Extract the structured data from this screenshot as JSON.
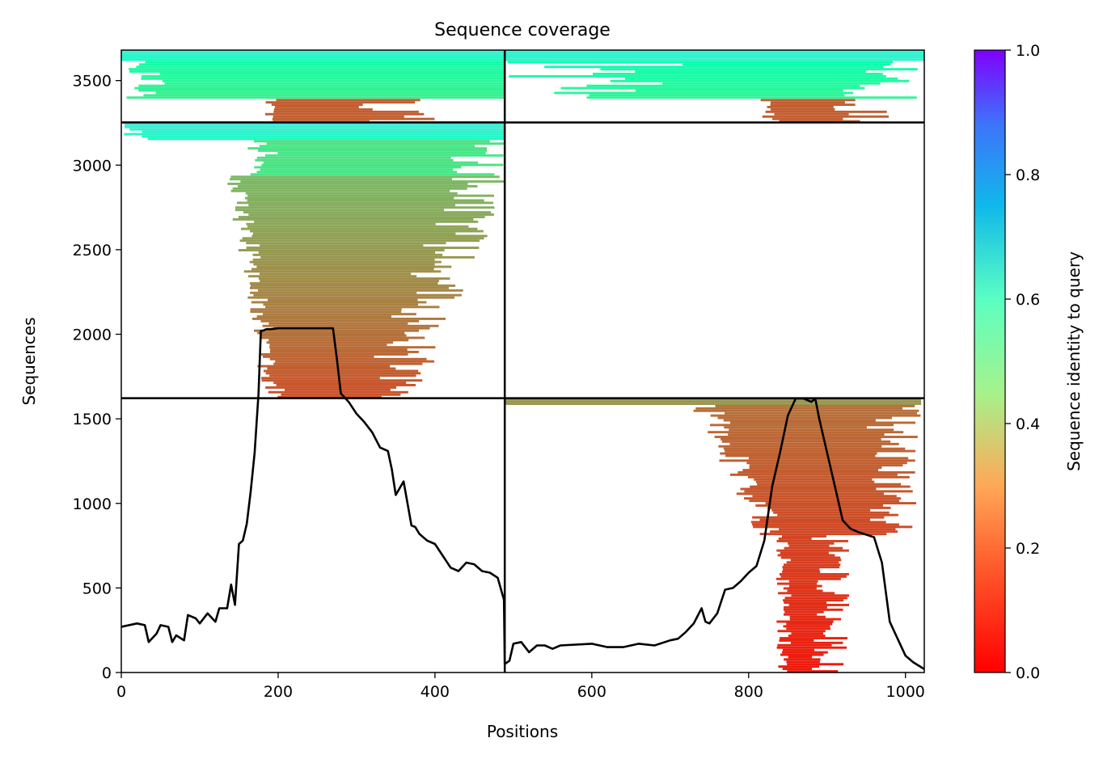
{
  "chart_data": {
    "type": "heatmap",
    "title": "Sequence coverage",
    "xlabel": "Positions",
    "ylabel": "Sequences",
    "xlim": [
      0,
      1024
    ],
    "ylim": [
      0,
      3680
    ],
    "xticks": [
      0,
      200,
      400,
      600,
      800,
      1000
    ],
    "yticks": [
      0,
      500,
      1000,
      1500,
      2000,
      2500,
      3000,
      3500
    ],
    "grid": false,
    "colorbar": {
      "label": "Sequence identity to query",
      "colormap": "rainbow_r",
      "range": [
        0,
        1
      ],
      "ticks": [
        0.0,
        0.2,
        0.4,
        0.6,
        0.8,
        1.0
      ],
      "tick_labels": [
        "0.0",
        "0.2",
        "0.4",
        "0.6",
        "0.8",
        "1.0"
      ]
    },
    "segment_boundaries": {
      "x": [
        489
      ],
      "y": [
        1622,
        3252
      ]
    },
    "coverage_blocks": [
      {
        "x": [
          0,
          489
        ],
        "y": [
          3252,
          3680
        ],
        "identity_range": [
          0.1,
          0.65
        ]
      },
      {
        "x": [
          489,
          1024
        ],
        "y": [
          3252,
          3680
        ],
        "identity_range": [
          0.1,
          0.65
        ]
      },
      {
        "x": [
          0,
          489
        ],
        "y": [
          1622,
          3252
        ],
        "identity_range": [
          0.1,
          0.65
        ]
      },
      {
        "x": [
          489,
          1024
        ],
        "y": [
          0,
          1622
        ],
        "identity_range": [
          0.02,
          0.55
        ]
      }
    ],
    "coverage_line": {
      "color": "#000000",
      "x": [
        0,
        20,
        30,
        35,
        45,
        50,
        60,
        65,
        70,
        80,
        85,
        95,
        100,
        110,
        120,
        125,
        135,
        140,
        145,
        150,
        155,
        160,
        165,
        170,
        175,
        178,
        180,
        185,
        190,
        200,
        240,
        270,
        275,
        280,
        290,
        300,
        310,
        320,
        330,
        340,
        345,
        350,
        360,
        370,
        375,
        380,
        390,
        400,
        420,
        430,
        440,
        450,
        460,
        470,
        480,
        488,
        489,
        495,
        500,
        510,
        520,
        530,
        540,
        550,
        560,
        600,
        620,
        640,
        660,
        680,
        700,
        710,
        720,
        730,
        740,
        745,
        750,
        760,
        770,
        780,
        790,
        800,
        810,
        820,
        830,
        840,
        850,
        860,
        870,
        880,
        885,
        890,
        900,
        910,
        920,
        930,
        940,
        960,
        970,
        980,
        990,
        1000,
        1010,
        1024
      ],
      "y": [
        270,
        290,
        280,
        180,
        230,
        280,
        270,
        180,
        220,
        190,
        340,
        320,
        290,
        350,
        300,
        380,
        380,
        520,
        400,
        760,
        780,
        880,
        1070,
        1300,
        1650,
        2020,
        2020,
        2030,
        2030,
        2035,
        2035,
        2035,
        1850,
        1650,
        1600,
        1530,
        1480,
        1420,
        1330,
        1310,
        1200,
        1050,
        1130,
        870,
        860,
        820,
        780,
        760,
        620,
        600,
        650,
        640,
        600,
        590,
        560,
        430,
        50,
        70,
        170,
        180,
        120,
        160,
        160,
        140,
        160,
        170,
        150,
        150,
        170,
        160,
        190,
        200,
        240,
        290,
        380,
        300,
        290,
        350,
        490,
        500,
        540,
        590,
        630,
        780,
        1100,
        1300,
        1520,
        1620,
        1620,
        1600,
        1620,
        1500,
        1300,
        1100,
        900,
        850,
        830,
        800,
        650,
        300,
        200,
        100,
        60,
        20
      ]
    }
  }
}
